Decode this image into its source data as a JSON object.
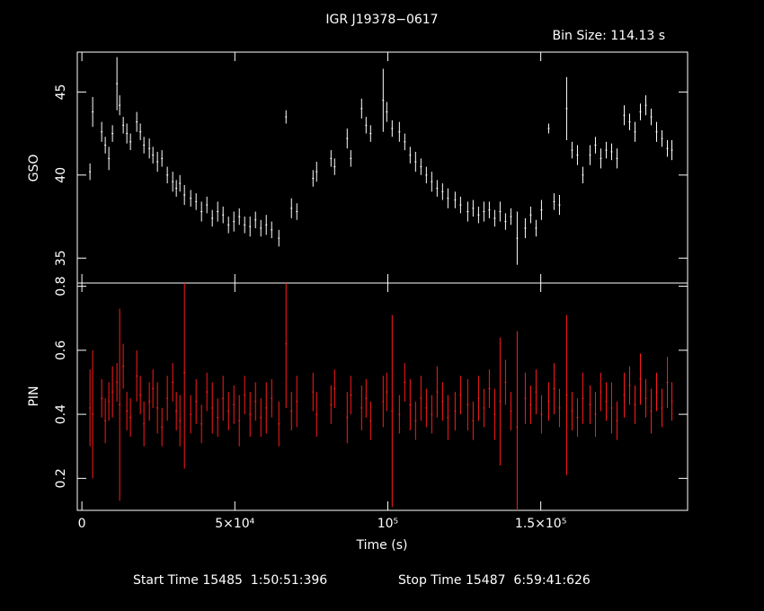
{
  "chart_data": [
    {
      "type": "errorbar",
      "title": "IGR J19378−0617",
      "subtitle": "Bin Size: 114.13 s",
      "ylabel": "GSO",
      "color": "#ffffff",
      "x": [
        2646,
        3528,
        6468,
        7644,
        8820,
        9996,
        11466,
        12348,
        13524,
        14700,
        15876,
        17934,
        19110,
        20286,
        22050,
        23226,
        24696,
        26166,
        27930,
        29694,
        30870,
        32046,
        33516,
        35574,
        37338,
        39102,
        40866,
        42630,
        44394,
        46158,
        47922,
        49686,
        51450,
        53214,
        54978,
        56742,
        58506,
        60270,
        62034,
        64386,
        66738,
        68502,
        70266,
        75558,
        76734,
        81438,
        82614,
        86730,
        87906,
        91434,
        92904,
        94374,
        98490,
        99666,
        101430,
        103782,
        105546,
        107310,
        109074,
        110838,
        112602,
        114366,
        116130,
        117894,
        119658,
        122010,
        123774,
        126126,
        127890,
        129654,
        131418,
        133182,
        134946,
        136710,
        138474,
        140238,
        142296,
        144942,
        146706,
        148470,
        150234,
        152586,
        154350,
        156114,
        158466,
        160230,
        161994,
        163758,
        166110,
        167874,
        169638,
        171402,
        173166,
        174930,
        177282,
        179046,
        180810,
        182574,
        184338,
        186102,
        187866,
        189630,
        191394,
        192864
      ],
      "values": [
        40.2,
        43.8,
        42.6,
        41.8,
        41.0,
        42.5,
        45.5,
        44.2,
        43.0,
        42.5,
        42.0,
        43.2,
        42.6,
        41.8,
        41.6,
        41.2,
        40.8,
        41.0,
        40.0,
        39.6,
        39.2,
        39.5,
        38.8,
        38.6,
        38.4,
        37.8,
        38.2,
        37.4,
        37.8,
        37.6,
        37.0,
        37.2,
        37.5,
        37.0,
        36.9,
        37.3,
        36.8,
        37.0,
        36.7,
        36.2,
        43.5,
        38.0,
        37.8,
        39.8,
        40.2,
        41.0,
        40.5,
        42.2,
        41.0,
        44.0,
        43.0,
        42.5,
        44.5,
        43.8,
        42.8,
        42.6,
        42.0,
        41.2,
        40.8,
        40.5,
        40.0,
        39.6,
        39.2,
        39.0,
        38.6,
        38.5,
        38.2,
        37.8,
        38.0,
        37.6,
        37.8,
        37.9,
        37.4,
        37.8,
        37.2,
        37.5,
        36.2,
        36.8,
        37.6,
        36.8,
        37.9,
        42.8,
        38.4,
        38.2,
        44.0,
        41.5,
        41.2,
        40.0,
        41.2,
        41.8,
        41.0,
        41.5,
        41.4,
        41.0,
        43.6,
        43.2,
        42.6,
        43.8,
        44.2,
        43.5,
        42.6,
        42.2,
        41.6,
        41.5
      ],
      "errors": [
        0.5,
        0.9,
        0.6,
        0.5,
        0.7,
        0.5,
        1.6,
        0.6,
        0.5,
        0.6,
        0.5,
        0.6,
        0.5,
        0.5,
        0.6,
        0.5,
        0.6,
        0.5,
        0.5,
        0.6,
        0.5,
        0.5,
        0.6,
        0.5,
        0.5,
        0.6,
        0.5,
        0.5,
        0.6,
        0.5,
        0.5,
        0.6,
        0.5,
        0.5,
        0.6,
        0.5,
        0.5,
        0.6,
        0.5,
        0.5,
        0.4,
        0.6,
        0.5,
        0.5,
        0.6,
        0.5,
        0.5,
        0.6,
        0.5,
        0.6,
        0.5,
        0.5,
        1.9,
        0.6,
        0.5,
        0.6,
        0.5,
        0.5,
        0.6,
        0.5,
        0.5,
        0.6,
        0.5,
        0.5,
        0.6,
        0.5,
        0.5,
        0.6,
        0.5,
        0.5,
        0.6,
        0.5,
        0.5,
        0.6,
        0.5,
        0.5,
        1.6,
        0.6,
        0.5,
        0.5,
        0.6,
        0.3,
        0.5,
        0.6,
        1.9,
        0.5,
        0.6,
        0.5,
        0.6,
        0.5,
        0.6,
        0.5,
        0.5,
        0.6,
        0.6,
        0.5,
        0.6,
        0.5,
        0.6,
        0.5,
        0.6,
        0.5,
        0.5,
        0.6
      ],
      "xlim": [
        -1500,
        198000
      ],
      "xticks": [
        0,
        50000,
        100000,
        150000
      ],
      "ylim": [
        33.5,
        47.4
      ],
      "yticks": [
        35,
        40,
        45
      ]
    },
    {
      "type": "errorbar",
      "xlabel": "Time (s)",
      "ylabel": "PIN",
      "color": "#ff1a1a",
      "annotations": [
        "Start Time 15485  1:50:51:396",
        "Stop Time 15487  6:59:41:626"
      ],
      "x": [
        2646,
        3528,
        6468,
        7644,
        8820,
        9996,
        11466,
        12348,
        13524,
        14700,
        15876,
        17934,
        19110,
        20286,
        22050,
        23226,
        24696,
        26166,
        27930,
        29694,
        30870,
        32046,
        33516,
        35574,
        37338,
        39102,
        40866,
        42630,
        44394,
        46158,
        47922,
        49686,
        51450,
        53214,
        54978,
        56742,
        58506,
        60270,
        62034,
        64386,
        66738,
        68502,
        70266,
        75558,
        76734,
        81438,
        82614,
        86730,
        87906,
        91434,
        92904,
        94374,
        98490,
        99666,
        101430,
        103782,
        105546,
        107310,
        109074,
        110838,
        112602,
        114366,
        116130,
        117894,
        119658,
        122010,
        123774,
        126126,
        127890,
        129654,
        131418,
        133182,
        134946,
        136710,
        138474,
        140238,
        142296,
        144942,
        146706,
        148470,
        150234,
        152586,
        154350,
        156114,
        158466,
        160230,
        161994,
        163758,
        166110,
        167874,
        169638,
        171402,
        173166,
        174930,
        177282,
        179046,
        180810,
        182574,
        184338,
        186102,
        187866,
        189630,
        191394,
        192864
      ],
      "values": [
        0.42,
        0.4,
        0.45,
        0.38,
        0.44,
        0.47,
        0.5,
        0.43,
        0.55,
        0.41,
        0.39,
        0.52,
        0.46,
        0.37,
        0.44,
        0.48,
        0.42,
        0.36,
        0.45,
        0.5,
        0.41,
        0.38,
        0.53,
        0.4,
        0.44,
        0.37,
        0.47,
        0.42,
        0.39,
        0.45,
        0.41,
        0.43,
        0.38,
        0.46,
        0.4,
        0.44,
        0.39,
        0.42,
        0.45,
        0.37,
        0.62,
        0.41,
        0.44,
        0.47,
        0.4,
        0.43,
        0.48,
        0.39,
        0.46,
        0.42,
        0.45,
        0.38,
        0.44,
        0.47,
        0.41,
        0.4,
        0.5,
        0.43,
        0.38,
        0.45,
        0.42,
        0.4,
        0.47,
        0.44,
        0.39,
        0.41,
        0.46,
        0.43,
        0.38,
        0.45,
        0.42,
        0.48,
        0.4,
        0.44,
        0.5,
        0.41,
        0.36,
        0.45,
        0.43,
        0.47,
        0.4,
        0.44,
        0.48,
        0.42,
        0.46,
        0.41,
        0.39,
        0.45,
        0.43,
        0.4,
        0.47,
        0.44,
        0.42,
        0.38,
        0.46,
        0.49,
        0.43,
        0.51,
        0.45,
        0.41,
        0.47,
        0.42,
        0.5,
        0.44
      ],
      "errors": [
        0.12,
        0.2,
        0.06,
        0.07,
        0.06,
        0.08,
        0.06,
        0.3,
        0.07,
        0.06,
        0.06,
        0.08,
        0.06,
        0.07,
        0.06,
        0.06,
        0.08,
        0.06,
        0.07,
        0.06,
        0.06,
        0.08,
        0.3,
        0.06,
        0.07,
        0.06,
        0.06,
        0.08,
        0.06,
        0.07,
        0.06,
        0.06,
        0.08,
        0.06,
        0.07,
        0.06,
        0.06,
        0.08,
        0.06,
        0.07,
        0.2,
        0.06,
        0.08,
        0.06,
        0.07,
        0.06,
        0.06,
        0.08,
        0.06,
        0.07,
        0.06,
        0.06,
        0.08,
        0.06,
        0.3,
        0.06,
        0.06,
        0.08,
        0.06,
        0.07,
        0.06,
        0.06,
        0.08,
        0.06,
        0.07,
        0.06,
        0.06,
        0.08,
        0.06,
        0.07,
        0.06,
        0.06,
        0.08,
        0.2,
        0.07,
        0.06,
        0.3,
        0.08,
        0.06,
        0.07,
        0.06,
        0.06,
        0.08,
        0.06,
        0.25,
        0.06,
        0.06,
        0.08,
        0.06,
        0.07,
        0.06,
        0.06,
        0.08,
        0.06,
        0.07,
        0.06,
        0.06,
        0.08,
        0.06,
        0.07,
        0.06,
        0.06,
        0.08,
        0.06
      ],
      "xlim": [
        -1500,
        198000
      ],
      "xticks": [
        0,
        {
          "value": 50000,
          "label": "5×10⁴"
        },
        {
          "value": 100000,
          "label": "10⁵"
        },
        {
          "value": 150000,
          "label": "1.5×10⁵"
        }
      ],
      "ylim": [
        0.1,
        0.81
      ],
      "yticks": [
        0.2,
        0.4,
        0.6,
        0.8
      ]
    }
  ]
}
